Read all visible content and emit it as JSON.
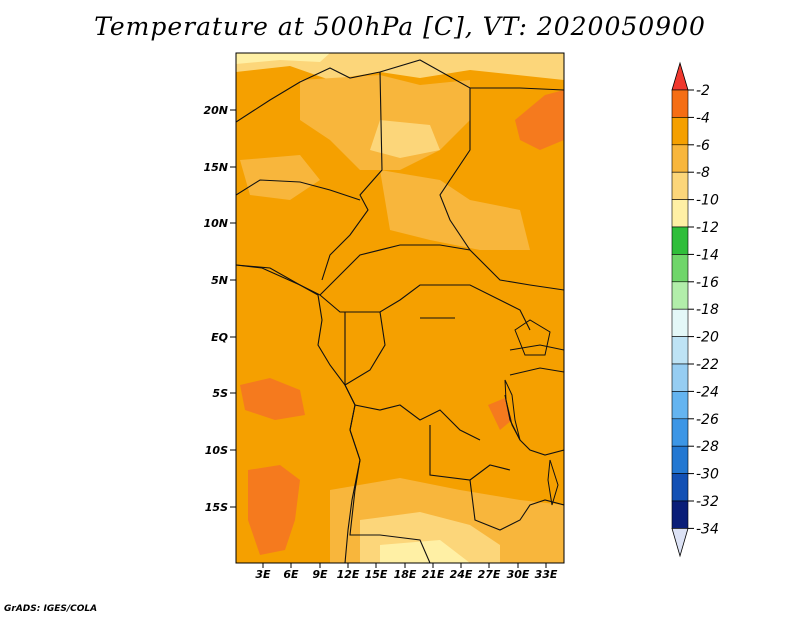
{
  "title": "Temperature at 500hPa [C], VT: 2020050900",
  "credit": "GrADS: IGES/COLA",
  "map": {
    "lat_ticks": [
      "20N",
      "15N",
      "10N",
      "5N",
      "EQ",
      "5S",
      "10S",
      "15S"
    ],
    "lon_ticks": [
      "3E",
      "6E",
      "9E",
      "12E",
      "15E",
      "18E",
      "21E",
      "24E",
      "27E",
      "30E",
      "33E"
    ],
    "colors": {
      "background": "#F5A000",
      "warm_patch": "#F57A1E",
      "cool_patch": "#F8B63C",
      "cooler_patch": "#FCD67A",
      "coolest_patch": "#FFF0A5"
    }
  },
  "colorbar": {
    "labels": [
      "-2",
      "-4",
      "-6",
      "-8",
      "-10",
      "-12",
      "-14",
      "-16",
      "-18",
      "-20",
      "-22",
      "-24",
      "-26",
      "-28",
      "-30",
      "-32",
      "-34"
    ],
    "colors": [
      "#F0382E",
      "#F56E14",
      "#F5A000",
      "#F8B63C",
      "#FCD67A",
      "#FFF0A5",
      "#2FBE3A",
      "#6FD66A",
      "#B2EEAA",
      "#E4F8F8",
      "#BEE3F5",
      "#96CDF2",
      "#64B4F0",
      "#3C96E6",
      "#2378D2",
      "#1250B4",
      "#0A1E78",
      "#DCE2F5"
    ]
  }
}
